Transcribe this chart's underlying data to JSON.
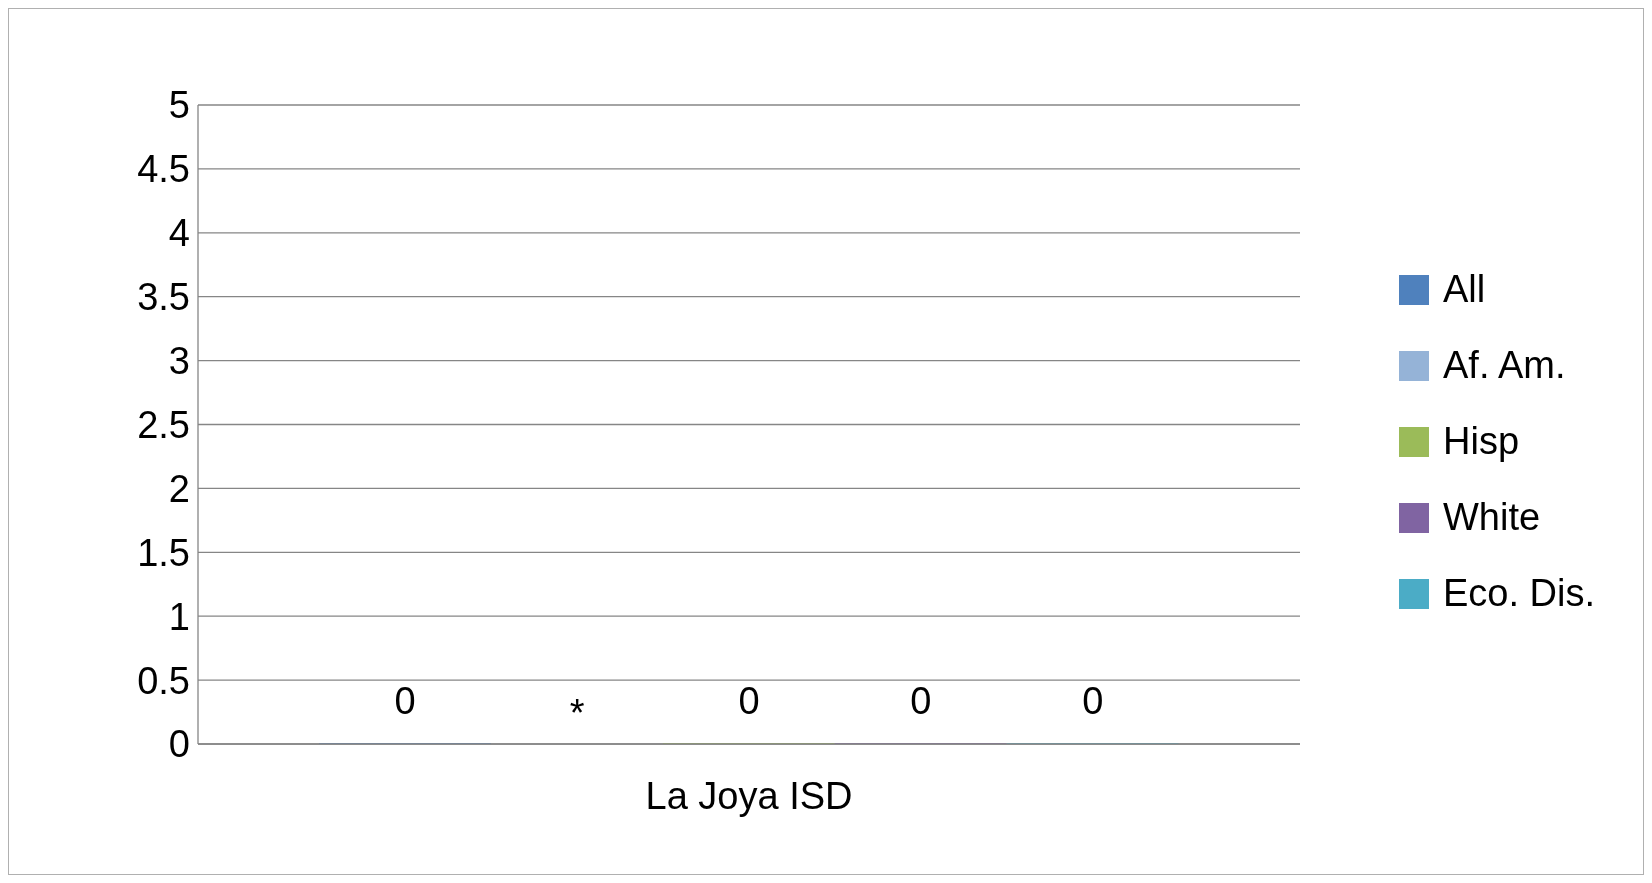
{
  "chart_data": {
    "type": "bar",
    "categories": [
      "La Joya ISD"
    ],
    "series": [
      {
        "name": "All",
        "color": "#4f81bd",
        "values": [
          0
        ],
        "value_labels": [
          "0"
        ]
      },
      {
        "name": "Af. Am.",
        "color": "#95b3d7",
        "values": [
          null
        ],
        "value_labels": [
          "*"
        ]
      },
      {
        "name": "Hisp",
        "color": "#9bbb59",
        "values": [
          0
        ],
        "value_labels": [
          "0"
        ]
      },
      {
        "name": "White",
        "color": "#8064a2",
        "values": [
          0
        ],
        "value_labels": [
          "0"
        ]
      },
      {
        "name": "Eco. Dis.",
        "color": "#4bacc6",
        "values": [
          0
        ],
        "value_labels": [
          "0"
        ]
      }
    ],
    "ylim": [
      0,
      5
    ],
    "yticks": [
      0,
      0.5,
      1,
      1.5,
      2,
      2.5,
      3,
      3.5,
      4,
      4.5,
      5
    ],
    "grid": "y",
    "legend": "right"
  }
}
